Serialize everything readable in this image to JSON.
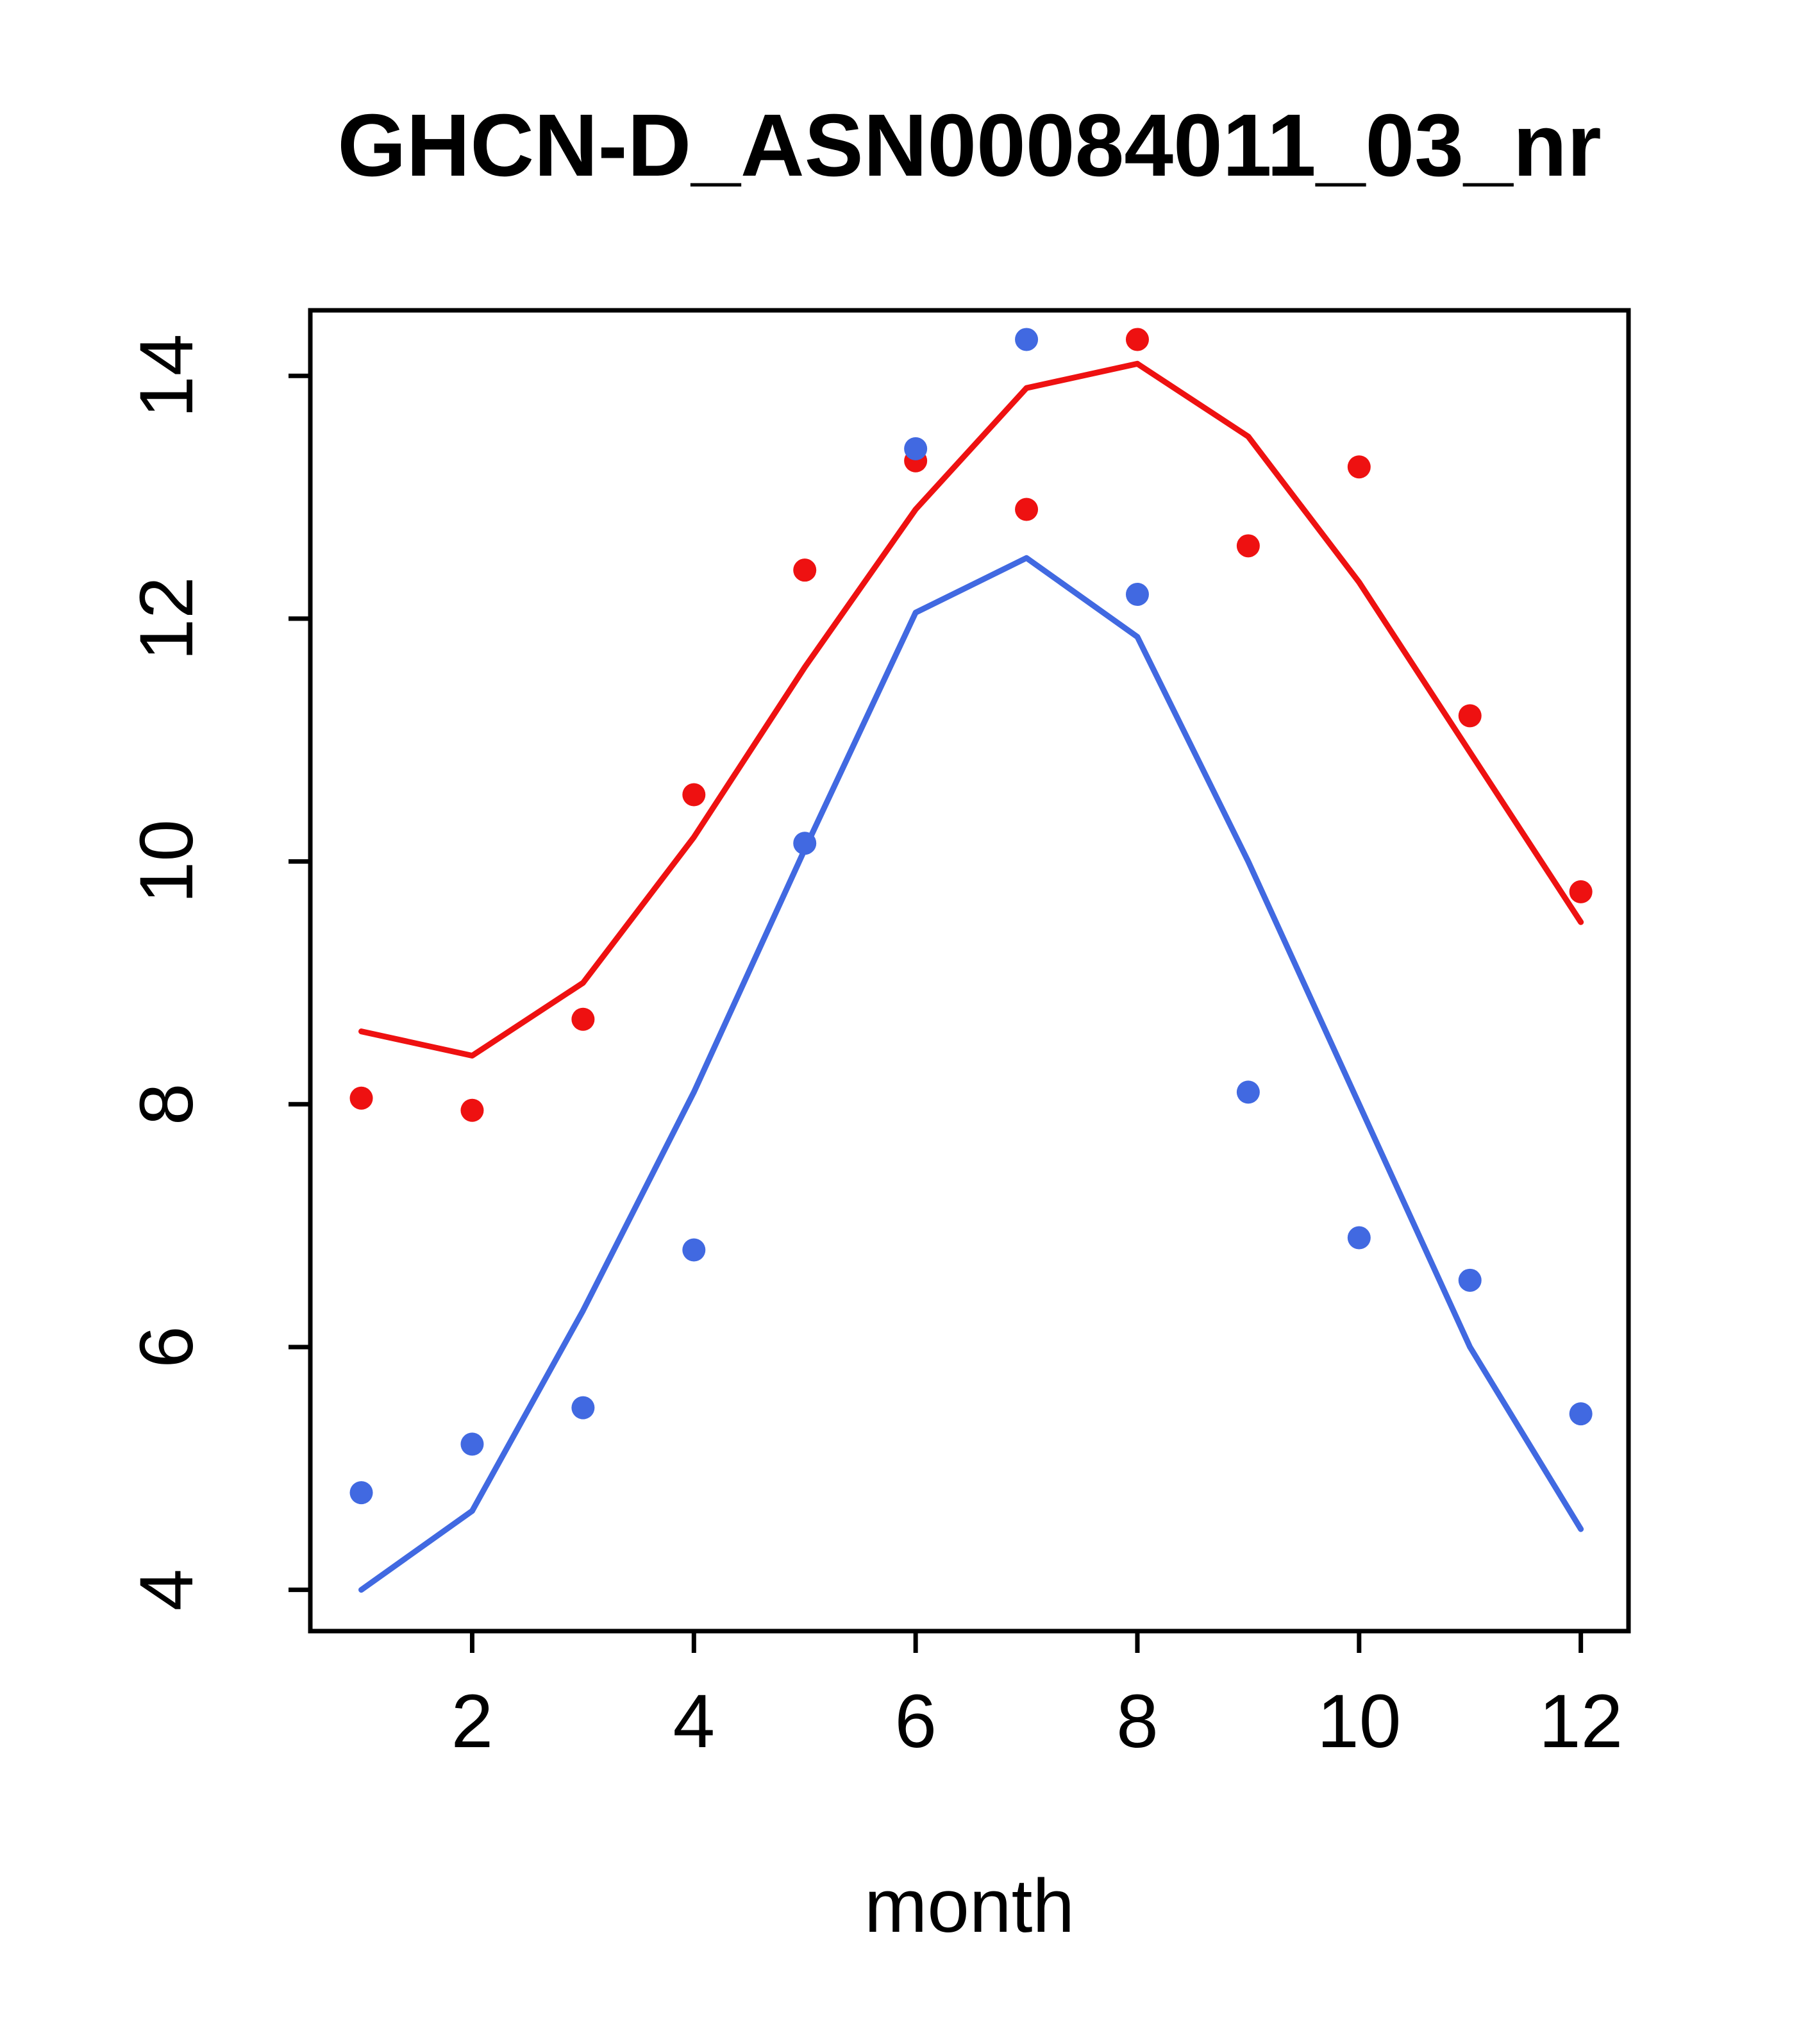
{
  "chart_data": {
    "type": "line",
    "title": "GHCN-D_ASN00084011_03_nr",
    "xlabel": "month",
    "ylabel": "",
    "x": [
      1,
      2,
      3,
      4,
      5,
      6,
      7,
      8,
      9,
      10,
      11,
      12
    ],
    "xticks": [
      2,
      4,
      6,
      8,
      10,
      12
    ],
    "yticks": [
      4,
      6,
      8,
      10,
      12,
      14
    ],
    "xlim": [
      0.54,
      12.43
    ],
    "ylim": [
      3.66,
      14.54
    ],
    "grid": false,
    "legend": "none",
    "colors": {
      "red": "#ee1111",
      "blue": "#4169e1",
      "axis": "#000000",
      "background": "#ffffff"
    },
    "series": [
      {
        "name": "red-line",
        "kind": "line",
        "color_key": "red",
        "values": [
          8.6,
          8.4,
          9.0,
          10.2,
          11.6,
          12.9,
          13.9,
          14.1,
          13.5,
          12.3,
          10.9,
          9.5
        ]
      },
      {
        "name": "blue-line",
        "kind": "line",
        "color_key": "blue",
        "values": [
          4.0,
          4.65,
          6.3,
          8.1,
          10.1,
          12.05,
          12.5,
          11.85,
          10.0,
          8.0,
          6.0,
          4.5
        ]
      },
      {
        "name": "red-points",
        "kind": "scatter",
        "color_key": "red",
        "values": [
          8.05,
          7.95,
          8.7,
          10.55,
          12.4,
          13.3,
          12.9,
          14.3,
          12.6,
          13.25,
          11.2,
          9.75
        ]
      },
      {
        "name": "blue-points",
        "kind": "scatter",
        "color_key": "blue",
        "values": [
          4.8,
          5.2,
          5.5,
          6.8,
          10.15,
          13.4,
          14.3,
          12.2,
          8.1,
          6.9,
          6.55,
          5.45
        ]
      }
    ]
  }
}
